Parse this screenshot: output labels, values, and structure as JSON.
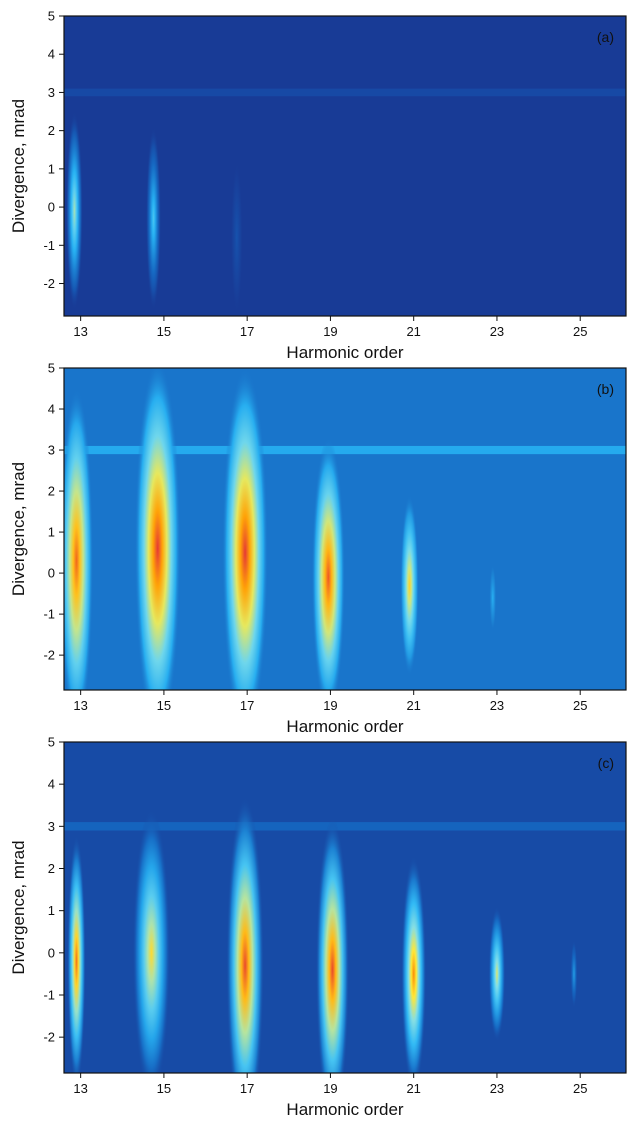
{
  "chart_data": [
    {
      "type": "heatmap",
      "panel_label": "(a)",
      "xlabel": "Harmonic order",
      "ylabel": "Divergence, mrad",
      "xlim": [
        12.6,
        26.1
      ],
      "ylim": [
        -2.85,
        5.0
      ],
      "x_ticks": [
        "13",
        "15",
        "17",
        "19",
        "21",
        "23",
        "25"
      ],
      "y_ticks": [
        "-2",
        "-1",
        "0",
        "1",
        "2",
        "3",
        "4",
        "5"
      ],
      "colorscale": [
        "#1a237e",
        "#1565c0",
        "#29b6f6",
        "#80deea",
        "#ffeb3b",
        "#ff9800",
        "#e53935"
      ],
      "background_level": 0.06,
      "line_3mrad_level": 0.1,
      "harmonics": [
        {
          "order": 13,
          "center": 12.85,
          "y_center": -0.1,
          "peak": 0.55,
          "halfwidth": 0.2,
          "y_halfspan": 2.6
        },
        {
          "order": 15,
          "center": 14.75,
          "y_center": -0.3,
          "peak": 0.4,
          "halfwidth": 0.18,
          "y_halfspan": 2.4
        },
        {
          "order": 17,
          "center": 16.75,
          "y_center": -0.8,
          "peak": 0.12,
          "halfwidth": 0.14,
          "y_halfspan": 2.0
        }
      ]
    },
    {
      "type": "heatmap",
      "panel_label": "(b)",
      "xlabel": "Harmonic order",
      "ylabel": "Divergence, mrad",
      "xlim": [
        12.6,
        26.1
      ],
      "ylim": [
        -2.85,
        5.0
      ],
      "x_ticks": [
        "13",
        "15",
        "17",
        "19",
        "21",
        "23",
        "25"
      ],
      "y_ticks": [
        "-2",
        "-1",
        "0",
        "1",
        "2",
        "3",
        "4",
        "5"
      ],
      "colorscale": [
        "#1a237e",
        "#1565c0",
        "#29b6f6",
        "#80deea",
        "#ffeb3b",
        "#ff9800",
        "#e53935"
      ],
      "background_level": 0.2,
      "line_3mrad_level": 0.32,
      "harmonics": [
        {
          "order": 13,
          "center": 12.9,
          "y_center": 0.3,
          "peak": 0.92,
          "halfwidth": 0.4,
          "y_halfspan": 4.2
        },
        {
          "order": 15,
          "center": 14.85,
          "y_center": 0.6,
          "peak": 1.0,
          "halfwidth": 0.55,
          "y_halfspan": 4.6
        },
        {
          "order": 17,
          "center": 16.95,
          "y_center": 0.5,
          "peak": 1.0,
          "halfwidth": 0.55,
          "y_halfspan": 4.5
        },
        {
          "order": 19,
          "center": 18.95,
          "y_center": -0.1,
          "peak": 0.95,
          "halfwidth": 0.4,
          "y_halfspan": 3.4
        },
        {
          "order": 21,
          "center": 20.9,
          "y_center": -0.3,
          "peak": 0.72,
          "halfwidth": 0.22,
          "y_halfspan": 2.2
        },
        {
          "order": 23,
          "center": 22.9,
          "y_center": -0.6,
          "peak": 0.32,
          "halfwidth": 0.08,
          "y_halfspan": 0.8
        }
      ]
    },
    {
      "type": "heatmap",
      "panel_label": "(c)",
      "xlabel": "Harmonic order",
      "ylabel": "Divergence, mrad",
      "xlim": [
        12.6,
        26.1
      ],
      "ylim": [
        -2.85,
        5.0
      ],
      "x_ticks": [
        "13",
        "15",
        "17",
        "19",
        "21",
        "23",
        "25"
      ],
      "y_ticks": [
        "-2",
        "-1",
        "0",
        "1",
        "2",
        "3",
        "4",
        "5"
      ],
      "colorscale": [
        "#1a237e",
        "#1565c0",
        "#29b6f6",
        "#80deea",
        "#ffeb3b",
        "#ff9800",
        "#e53935"
      ],
      "background_level": 0.1,
      "line_3mrad_level": 0.17,
      "harmonics": [
        {
          "order": 13,
          "center": 12.9,
          "y_center": -0.2,
          "peak": 0.9,
          "halfwidth": 0.22,
          "y_halfspan": 3.0
        },
        {
          "order": 15,
          "center": 14.7,
          "y_center": 0.0,
          "peak": 0.7,
          "halfwidth": 0.45,
          "y_halfspan": 3.4
        },
        {
          "order": 17,
          "center": 16.95,
          "y_center": -0.3,
          "peak": 0.97,
          "halfwidth": 0.45,
          "y_halfspan": 4.0
        },
        {
          "order": 19,
          "center": 19.05,
          "y_center": -0.4,
          "peak": 0.97,
          "halfwidth": 0.4,
          "y_halfspan": 3.6
        },
        {
          "order": 21,
          "center": 21.0,
          "y_center": -0.5,
          "peak": 0.85,
          "halfwidth": 0.3,
          "y_halfspan": 2.8
        },
        {
          "order": 23,
          "center": 23.0,
          "y_center": -0.5,
          "peak": 0.62,
          "halfwidth": 0.2,
          "y_halfspan": 1.6
        },
        {
          "order": 25,
          "center": 24.85,
          "y_center": -0.5,
          "peak": 0.28,
          "halfwidth": 0.08,
          "y_halfspan": 0.8
        }
      ]
    }
  ]
}
